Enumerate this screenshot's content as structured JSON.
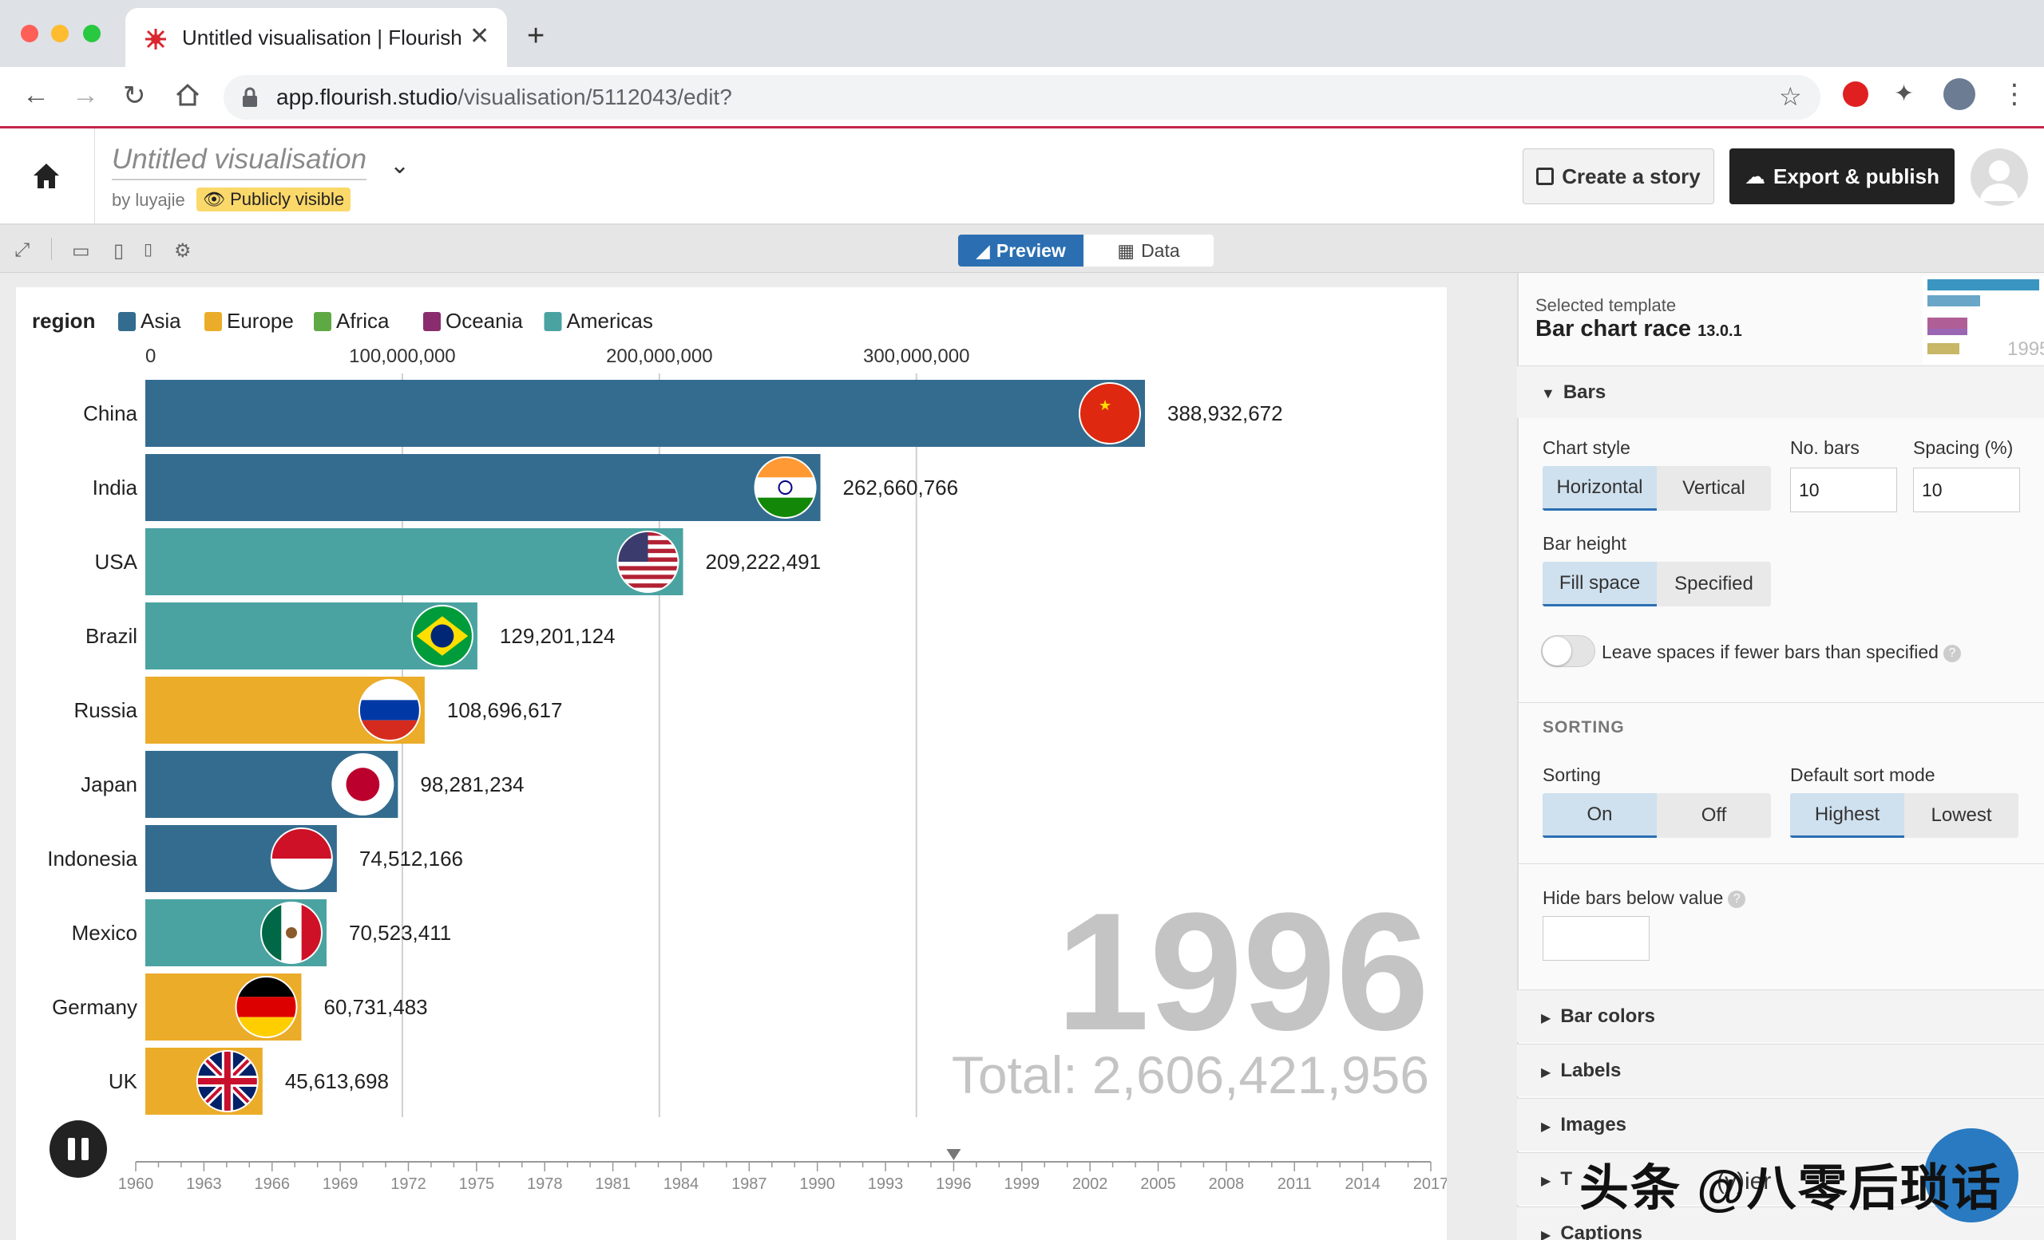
{
  "browser": {
    "tab_title": "Untitled visualisation | Flourish",
    "url_host": "app.flourish.studio",
    "url_path": "/visualisation/5112043/edit?"
  },
  "header": {
    "title": "Untitled visualisation",
    "byline": "by luyajie",
    "visibility": "Publicly visible",
    "story_button": "Create a story",
    "publish_button": "Export & publish"
  },
  "toolbar": {
    "preview_label": "Preview",
    "data_label": "Data"
  },
  "colors": {
    "asia": "#336c8f",
    "europe": "#ebac29",
    "africa": "#5fa944",
    "oceania": "#8a2d6e",
    "americas": "#4aa3a1",
    "accent": "#2b6fb2"
  },
  "chart_data": {
    "type": "bar",
    "legend_title": "region",
    "legend": [
      {
        "name": "Asia",
        "color": "#336c8f"
      },
      {
        "name": "Europe",
        "color": "#ebac29"
      },
      {
        "name": "Africa",
        "color": "#5fa944"
      },
      {
        "name": "Oceania",
        "color": "#8a2d6e"
      },
      {
        "name": "Americas",
        "color": "#4aa3a1"
      }
    ],
    "x_ticks": [
      0,
      100000000,
      200000000,
      300000000
    ],
    "x_tick_labels": [
      "0",
      "100,000,000",
      "200,000,000",
      "300,000,000"
    ],
    "xlim": [
      0,
      390000000
    ],
    "bars": [
      {
        "name": "China",
        "value": 388932672,
        "label": "388,932,672",
        "region": "Asia",
        "flag": "china-flag-icon"
      },
      {
        "name": "India",
        "value": 262660766,
        "label": "262,660,766",
        "region": "Asia",
        "flag": "india-flag-icon"
      },
      {
        "name": "USA",
        "value": 209222491,
        "label": "209,222,491",
        "region": "Americas",
        "flag": "usa-flag-icon"
      },
      {
        "name": "Brazil",
        "value": 129201124,
        "label": "129,201,124",
        "region": "Americas",
        "flag": "brazil-flag-icon"
      },
      {
        "name": "Russia",
        "value": 108696617,
        "label": "108,696,617",
        "region": "Europe",
        "flag": "russia-flag-icon"
      },
      {
        "name": "Japan",
        "value": 98281234,
        "label": "98,281,234",
        "region": "Asia",
        "flag": "japan-flag-icon"
      },
      {
        "name": "Indonesia",
        "value": 74512166,
        "label": "74,512,166",
        "region": "Asia",
        "flag": "indonesia-flag-icon"
      },
      {
        "name": "Mexico",
        "value": 70523411,
        "label": "70,523,411",
        "region": "Americas",
        "flag": "mexico-flag-icon"
      },
      {
        "name": "Germany",
        "value": 60731483,
        "label": "60,731,483",
        "region": "Europe",
        "flag": "germany-flag-icon"
      },
      {
        "name": "UK",
        "value": 45613698,
        "label": "45,613,698",
        "region": "Europe",
        "flag": "uk-flag-icon"
      }
    ],
    "current_year": "1996",
    "total_label": "Total: 2,606,421,956",
    "timeline_labels": [
      "1960",
      "1963",
      "1966",
      "1969",
      "1972",
      "1975",
      "1978",
      "1981",
      "1984",
      "1987",
      "1990",
      "1993",
      "1996",
      "1999",
      "2002",
      "2005",
      "2008",
      "2011",
      "2014",
      "2017"
    ],
    "timeline_range": [
      1960,
      2017
    ],
    "timeline_position": 1996
  },
  "panel": {
    "template_label": "Selected template",
    "template_name": "Bar chart race",
    "template_version": "13.0.1",
    "thumb_year": "1995",
    "bars_section": "Bars",
    "chart_style_label": "Chart style",
    "chart_style_options": [
      "Horizontal",
      "Vertical"
    ],
    "chart_style_selected": "Horizontal",
    "no_bars_label": "No. bars",
    "no_bars_value": "10",
    "spacing_label": "Spacing (%)",
    "spacing_value": "10",
    "bar_height_label": "Bar height",
    "bar_height_options": [
      "Fill space",
      "Specified"
    ],
    "leave_spaces_label": "Leave spaces if fewer bars than specified",
    "sorting_section": "SORTING",
    "sorting_label": "Sorting",
    "sorting_options": [
      "On",
      "Off"
    ],
    "sort_mode_label": "Default sort mode",
    "sort_mode_options": [
      "Highest",
      "Lowest"
    ],
    "hide_bars_label": "Hide bars below value",
    "collapsed_sections": [
      "Bar colors",
      "Labels",
      "Images",
      "T",
      "Captions"
    ]
  },
  "watermark": {
    "text": "头条 @八零后琐话",
    "partial_text": "(y)ier"
  }
}
